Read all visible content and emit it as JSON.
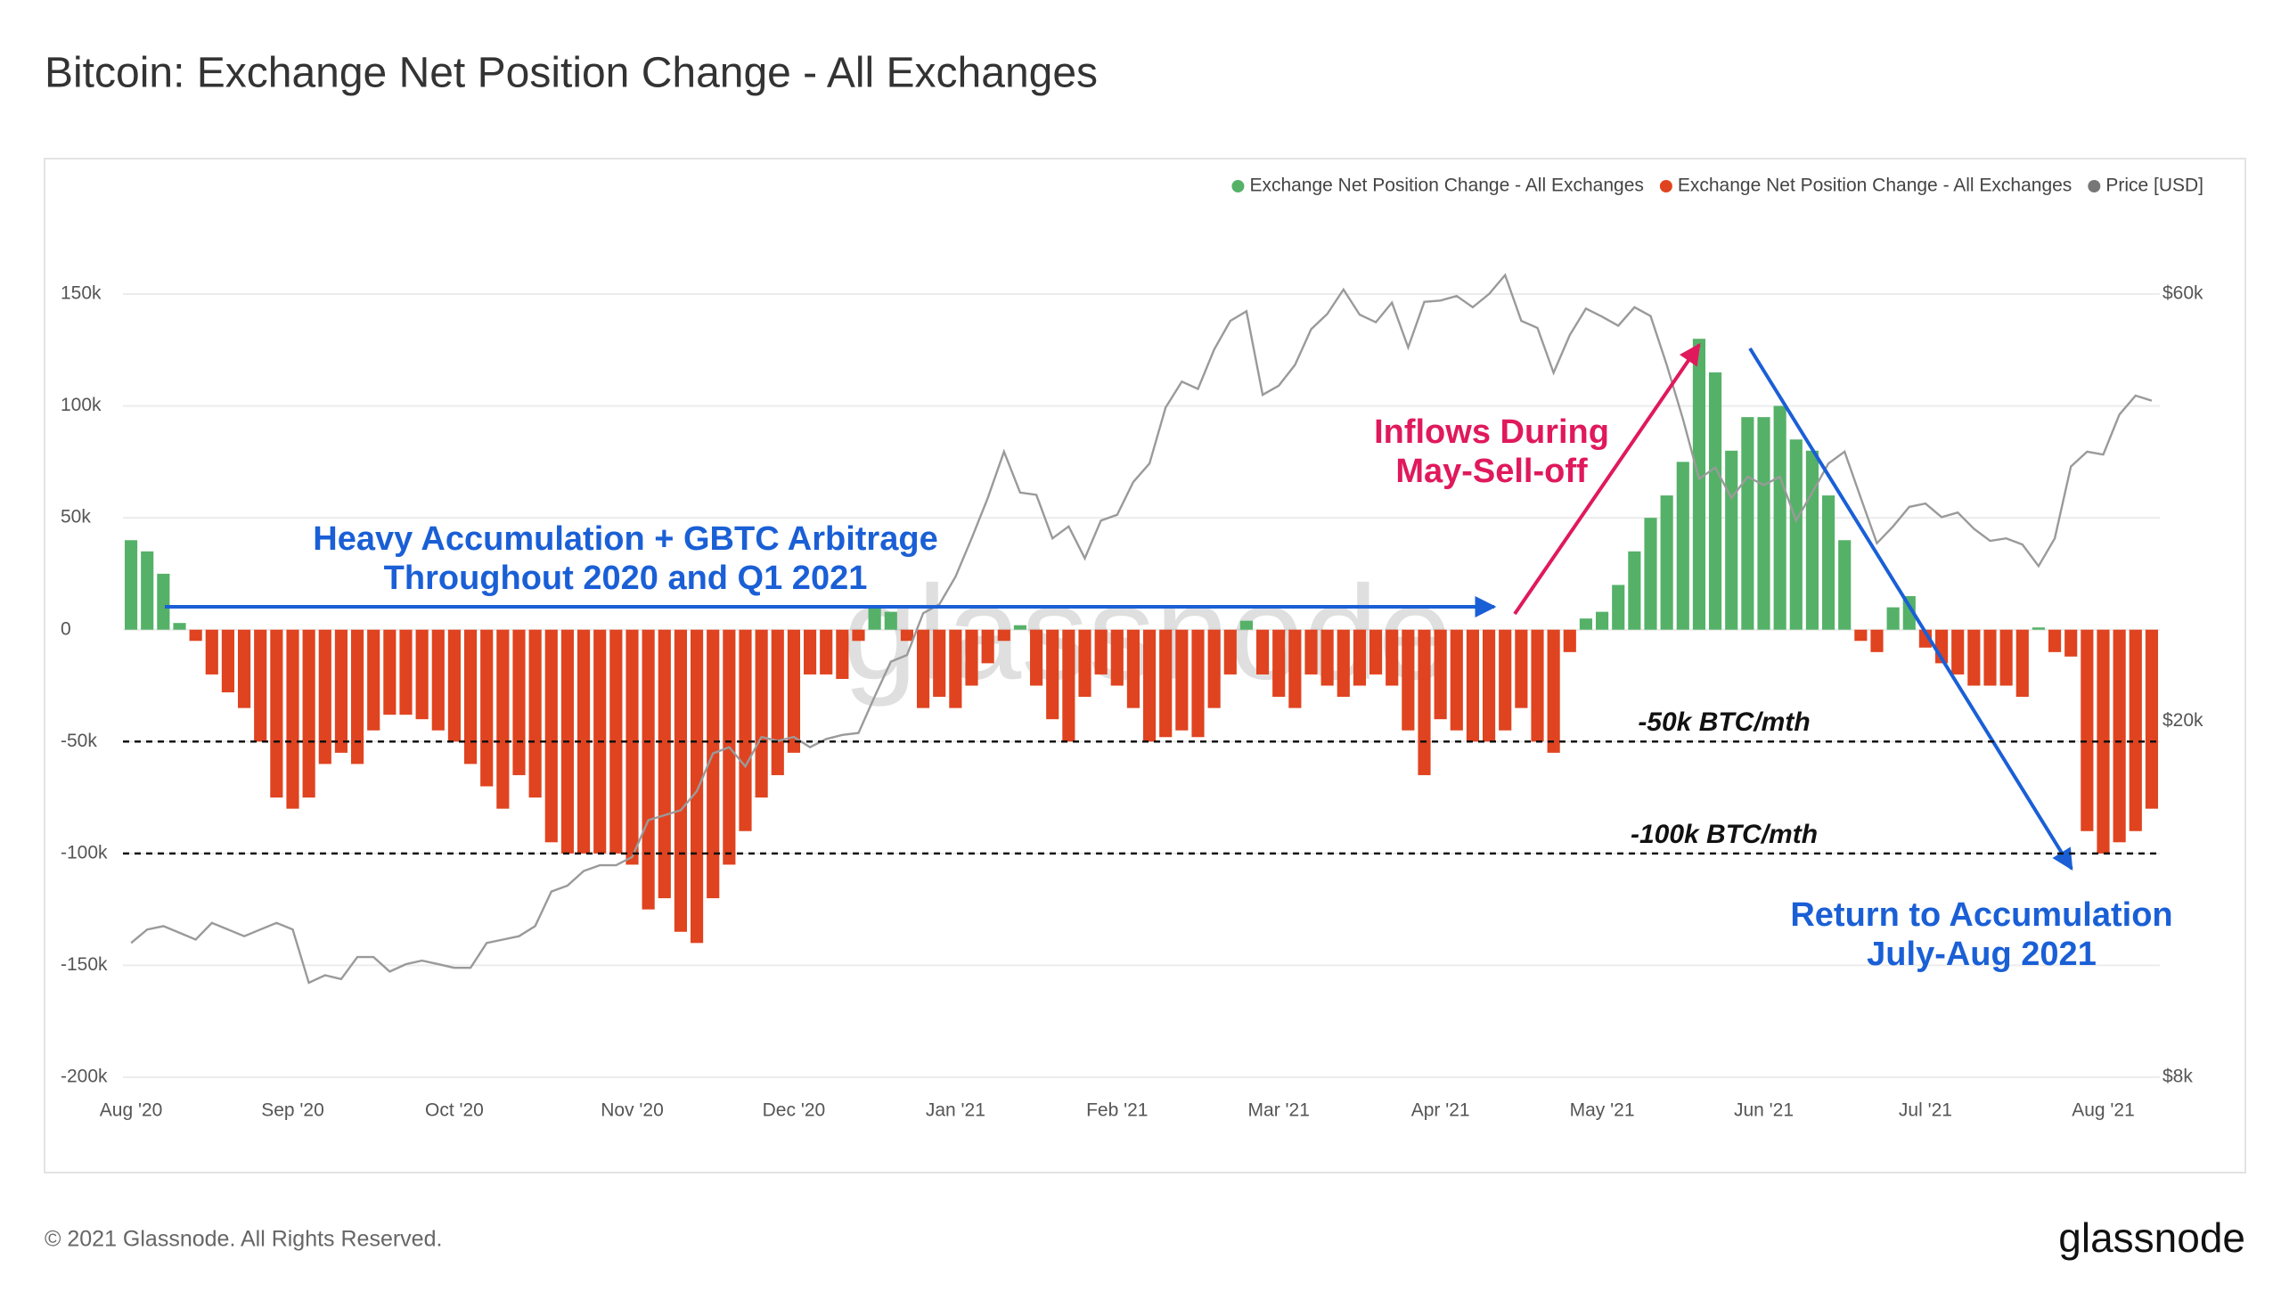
{
  "chart_data": {
    "type": "bar",
    "title": "Bitcoin: Exchange Net Position Change - All Exchanges",
    "categories": [
      "Aug '20",
      null,
      null,
      null,
      null,
      null,
      null,
      null,
      null,
      null,
      "Sep '20",
      null,
      null,
      null,
      null,
      null,
      null,
      null,
      null,
      null,
      "Oct '20",
      null,
      null,
      null,
      null,
      null,
      null,
      null,
      null,
      null,
      null,
      "Nov '20",
      null,
      null,
      null,
      null,
      null,
      null,
      null,
      null,
      null,
      "Dec '20",
      null,
      null,
      null,
      null,
      null,
      null,
      null,
      null,
      null,
      "Jan '21",
      null,
      null,
      null,
      null,
      null,
      null,
      null,
      null,
      null,
      "Feb '21",
      null,
      null,
      null,
      null,
      null,
      null,
      null,
      null,
      null,
      "Mar '21",
      null,
      null,
      null,
      null,
      null,
      null,
      null,
      null,
      null,
      "Apr '21",
      null,
      null,
      null,
      null,
      null,
      null,
      null,
      null,
      null,
      "May '21",
      null,
      null,
      null,
      null,
      null,
      null,
      null,
      null,
      null,
      "Jun '21",
      null,
      null,
      null,
      null,
      null,
      null,
      null,
      null,
      null,
      "Jul '21",
      null,
      null,
      null,
      null,
      null,
      null,
      null,
      null,
      null,
      null,
      "Aug '21",
      null,
      null,
      null
    ],
    "series": [
      {
        "name": "Exchange Net Position Change - All Exchanges",
        "color": "#55b168",
        "values": [
          40000,
          35000,
          25000,
          3000,
          null,
          null,
          null,
          null,
          null,
          null,
          null,
          null,
          null,
          null,
          null,
          null,
          null,
          null,
          null,
          null,
          null,
          null,
          null,
          null,
          null,
          null,
          null,
          null,
          null,
          null,
          null,
          null,
          null,
          null,
          null,
          null,
          null,
          null,
          null,
          null,
          null,
          null,
          null,
          null,
          null,
          null,
          10000,
          8000,
          null,
          null,
          null,
          null,
          null,
          null,
          null,
          2000,
          null,
          null,
          null,
          null,
          null,
          null,
          null,
          null,
          null,
          null,
          null,
          null,
          null,
          4000,
          null,
          null,
          null,
          null,
          null,
          null,
          null,
          null,
          null,
          null,
          null,
          null,
          null,
          null,
          null,
          null,
          null,
          null,
          null,
          null,
          5000,
          8000,
          20000,
          35000,
          50000,
          60000,
          75000,
          130000,
          115000,
          80000,
          95000,
          95000,
          100000,
          85000,
          80000,
          60000,
          40000,
          null,
          null,
          10000,
          15000,
          null,
          null,
          null,
          null,
          null,
          null,
          null,
          1000,
          null,
          null,
          null,
          null,
          null,
          null,
          null
        ]
      },
      {
        "name": "Exchange Net Position Change - All Exchanges",
        "color": "#e0431f",
        "values": [
          null,
          null,
          null,
          null,
          -5000,
          -20000,
          -28000,
          -35000,
          -50000,
          -75000,
          -80000,
          -75000,
          -60000,
          -55000,
          -60000,
          -45000,
          -38000,
          -38000,
          -40000,
          -45000,
          -50000,
          -60000,
          -70000,
          -80000,
          -65000,
          -75000,
          -95000,
          -100000,
          -100000,
          -100000,
          -100000,
          -105000,
          -125000,
          -120000,
          -135000,
          -140000,
          -120000,
          -105000,
          -90000,
          -75000,
          -65000,
          -55000,
          -20000,
          -20000,
          -22000,
          -5000,
          null,
          null,
          -5000,
          -35000,
          -30000,
          -35000,
          -25000,
          -15000,
          -5000,
          null,
          -25000,
          -40000,
          -50000,
          -30000,
          -20000,
          -25000,
          -35000,
          -50000,
          -48000,
          -45000,
          -48000,
          -35000,
          -20000,
          null,
          -20000,
          -30000,
          -35000,
          -20000,
          -25000,
          -30000,
          -25000,
          -20000,
          -25000,
          -45000,
          -65000,
          -40000,
          -45000,
          -50000,
          -50000,
          -45000,
          -35000,
          -50000,
          -55000,
          -10000,
          null,
          null,
          null,
          null,
          null,
          null,
          null,
          null,
          null,
          null,
          null,
          null,
          null,
          null,
          null,
          null,
          null,
          -5000,
          -10000,
          null,
          null,
          -8000,
          -15000,
          -20000,
          -25000,
          -25000,
          -25000,
          -30000,
          null,
          -10000,
          -12000,
          -90000,
          -100000,
          -95000,
          -90000,
          -80000
        ]
      },
      {
        "name": "Price [USD]",
        "color": "#9a9a9a",
        "axis": "y2",
        "values": [
          11300,
          11700,
          11800,
          11600,
          11400,
          11900,
          11700,
          11500,
          11700,
          11900,
          11700,
          10200,
          10400,
          10300,
          10900,
          10900,
          10500,
          10700,
          10800,
          10700,
          10600,
          10600,
          11300,
          11400,
          11500,
          11800,
          12900,
          13100,
          13600,
          13800,
          13800,
          14100,
          15500,
          15700,
          15900,
          16700,
          18400,
          18700,
          17800,
          19200,
          19000,
          19200,
          18700,
          19100,
          19300,
          19400,
          21300,
          23300,
          23700,
          26400,
          27000,
          29000,
          32000,
          35500,
          40000,
          36000,
          35800,
          32000,
          33000,
          30400,
          33500,
          34000,
          37000,
          38800,
          44800,
          47900,
          47000,
          52000,
          56000,
          57400,
          46300,
          47400,
          50000,
          54800,
          57000,
          60700,
          56900,
          55800,
          58700,
          52300,
          58800,
          59000,
          59700,
          58000,
          60000,
          63000,
          56000,
          55000,
          49000,
          54000,
          57800,
          56600,
          55300,
          58000,
          56700,
          50000,
          43500,
          37300,
          38400,
          35500,
          37500,
          36700,
          37500,
          33500,
          36000,
          38800,
          40000,
          35500,
          31600,
          33000,
          34700,
          35000,
          33800,
          34200,
          32800,
          31800,
          32000,
          31500,
          29800,
          32000,
          38500,
          40000,
          39700,
          44000,
          46200,
          45600
        ]
      }
    ],
    "ylim": [
      -200000,
      150000
    ],
    "yticks": [
      {
        "value": -200000,
        "label": "-200k"
      },
      {
        "value": -150000,
        "label": "-150k"
      },
      {
        "value": -100000,
        "label": "-100k"
      },
      {
        "value": -50000,
        "label": "-50k"
      },
      0,
      {
        "value": 50000,
        "label": "50k"
      },
      {
        "value": 100000,
        "label": "100k"
      },
      {
        "value": 150000,
        "label": "150k"
      }
    ],
    "y2lim": [
      8000,
      60000
    ],
    "y2log": true,
    "y2ticks": [
      {
        "value": 8000,
        "label": "$8k"
      },
      {
        "value": 20000,
        "label": "$20k"
      },
      {
        "value": 60000,
        "label": "$60k"
      }
    ],
    "grid": true,
    "legend": "top-right",
    "reference_lines": [
      {
        "value": -50000,
        "label": "-50k BTC/mth"
      },
      {
        "value": -100000,
        "label": "-100k BTC/mth"
      }
    ],
    "annotations": [
      {
        "text": [
          "Heavy Accumulation + GBTC Arbitrage",
          "Throughout 2020 and Q1 2021"
        ],
        "color": "#1a5fd6"
      },
      {
        "text": [
          "Inflows During",
          "May-Sell-off"
        ],
        "color": "#e0195c"
      },
      {
        "text": [
          "Return to Accumulation",
          "July-Aug 2021"
        ],
        "color": "#1a5fd6"
      }
    ],
    "watermark": "glassnode"
  },
  "footer": {
    "copyright": "© 2021 Glassnode. All Rights Reserved.",
    "logo": "glassnode"
  }
}
